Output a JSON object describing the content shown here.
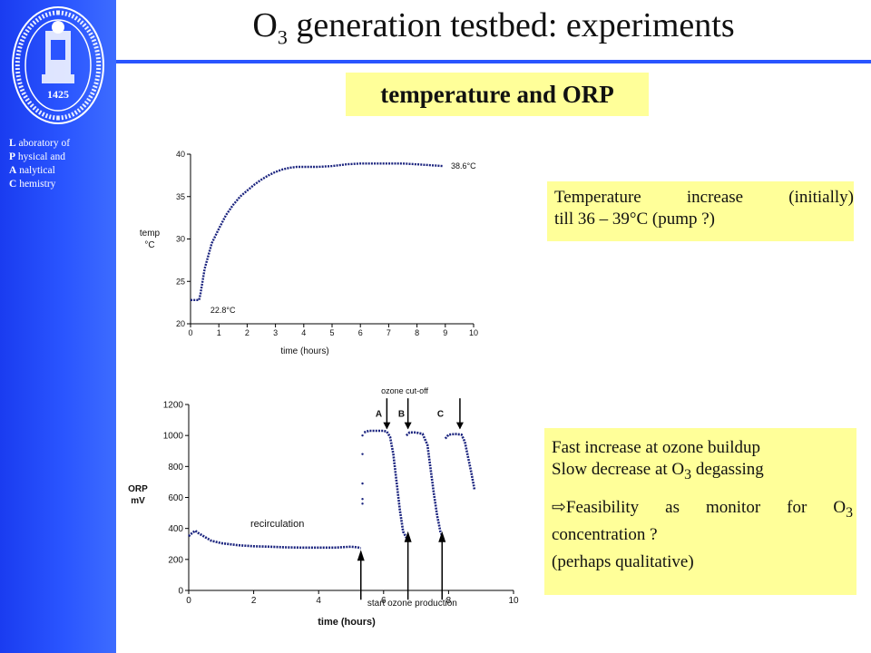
{
  "sidebar": {
    "seal_year": "1425",
    "lab_lines": [
      {
        "initial": "L",
        "rest": " aboratory of"
      },
      {
        "initial": "P",
        "rest": " hysical and"
      },
      {
        "initial": "A",
        "rest": " nalytical"
      },
      {
        "initial": "C",
        "rest": " hemistry"
      }
    ]
  },
  "title": {
    "pre": "O",
    "sub": "3",
    "post": " generation testbed: experiments"
  },
  "subtitle": "temperature and ORP",
  "note1": {
    "line1": "Temperature increase (initially)",
    "line2": "till 36 – 39°C (pump ?)"
  },
  "note2": {
    "line1": "Fast increase at ozone buildup",
    "line2_pre": "Slow decrease at O",
    "line2_sub": "3",
    "line2_post": " degassing",
    "arrow": "⇨",
    "line3_pre": "Feasibility as monitor for O",
    "line3_sub": "3",
    "line4": "concentration ?",
    "line5": "(perhaps qualitative)"
  },
  "colors": {
    "sidebar": "#2a55ff",
    "note_bg": "#ffff99",
    "curve": "#1a237e"
  },
  "chart_data": [
    {
      "type": "line",
      "xlabel": "time (hours)",
      "ylabel": [
        "temp",
        "°C"
      ],
      "xlim": [
        0,
        10
      ],
      "ylim": [
        20,
        40
      ],
      "xticks": [
        0,
        1,
        2,
        3,
        4,
        5,
        6,
        7,
        8,
        9,
        10
      ],
      "yticks": [
        20,
        25,
        30,
        35,
        40
      ],
      "x": [
        0,
        0.3,
        0.35,
        0.5,
        0.75,
        1,
        1.25,
        1.5,
        1.75,
        2,
        2.25,
        2.5,
        2.75,
        3,
        3.25,
        3.5,
        3.75,
        4,
        4.5,
        5,
        5.5,
        6,
        6.5,
        7,
        7.5,
        8,
        8.5,
        8.9
      ],
      "y": [
        22.8,
        22.8,
        23.5,
        26.5,
        29.5,
        31.2,
        32.8,
        34,
        35,
        35.7,
        36.4,
        37,
        37.5,
        37.9,
        38.2,
        38.4,
        38.5,
        38.5,
        38.5,
        38.6,
        38.8,
        38.9,
        38.9,
        38.9,
        38.9,
        38.8,
        38.7,
        38.6
      ],
      "annotations": [
        {
          "text": "22.8°C",
          "x": 0.7,
          "y": 21.6
        },
        {
          "text": "38.6°C",
          "x": 9.2,
          "y": 38.6
        }
      ]
    },
    {
      "type": "line",
      "xlabel": "time (hours)",
      "ylabel": [
        "ORP",
        "mV"
      ],
      "xlim": [
        0,
        10
      ],
      "ylim": [
        0,
        1200
      ],
      "xticks": [
        0,
        2,
        4,
        6,
        8,
        10
      ],
      "yticks": [
        0,
        200,
        400,
        600,
        800,
        1000,
        1200
      ],
      "series": [
        {
          "x": [
            0,
            0.1,
            0.2,
            0.3,
            0.5,
            0.7,
            1,
            1.5,
            2,
            2.5,
            3,
            3.5,
            4,
            4.5,
            4.8,
            5,
            5.2,
            5.3
          ],
          "y": [
            350,
            370,
            385,
            370,
            345,
            320,
            305,
            292,
            285,
            282,
            278,
            276,
            276,
            276,
            280,
            282,
            278,
            272
          ]
        },
        {
          "x": [
            5.4,
            5.55,
            5.8,
            6.0,
            6.1,
            6.2,
            6.3,
            6.4,
            6.5,
            6.6,
            6.7
          ],
          "y": [
            1020,
            1030,
            1030,
            1030,
            1025,
            990,
            880,
            700,
            520,
            380,
            340
          ]
        },
        {
          "x": [
            6.7,
            6.8,
            7.0,
            7.2,
            7.35,
            7.45,
            7.55,
            7.65,
            7.75,
            7.85
          ],
          "y": [
            1000,
            1020,
            1020,
            1010,
            940,
            780,
            620,
            480,
            380,
            330
          ]
        },
        {
          "x": [
            7.9,
            8.0,
            8.2,
            8.4,
            8.5,
            8.6,
            8.7,
            8.8
          ],
          "y": [
            980,
            1005,
            1010,
            1005,
            960,
            860,
            760,
            650
          ]
        }
      ],
      "text_labels": {
        "recirculation": "recirculation",
        "cutoff": "ozone cut-off",
        "start": "start ozone production",
        "A": "A",
        "B": "B",
        "C": "C"
      },
      "arrows_down_x": [
        6.1,
        6.75,
        8.35
      ],
      "arrows_up_x": [
        5.3,
        6.75,
        7.8
      ]
    }
  ]
}
